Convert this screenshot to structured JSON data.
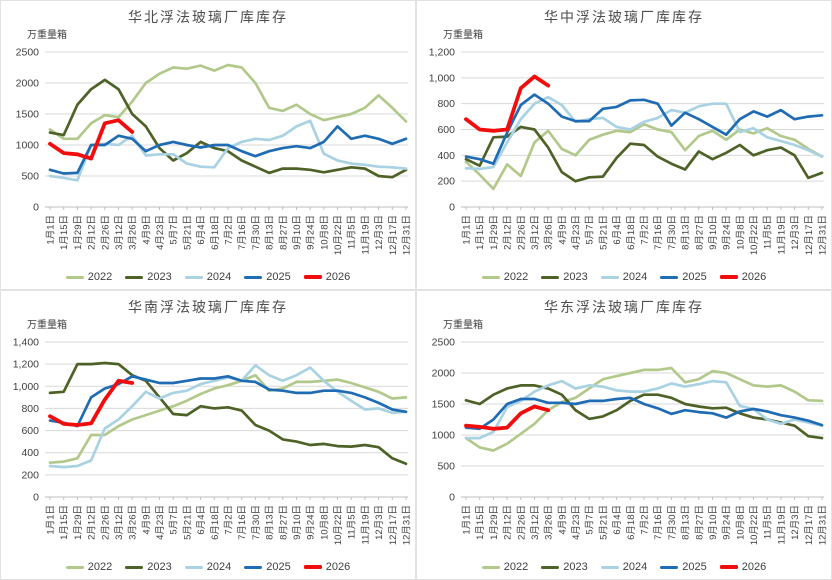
{
  "page_background": "#ffffff",
  "colors": {
    "grid": "#d9d9d9",
    "axis": "#bfbfbf",
    "tick_text": "#404040",
    "title_text": "#4d4d4d"
  },
  "categories": [
    "1月1日",
    "1月15日",
    "1月29日",
    "2月12日",
    "2月26日",
    "3月12日",
    "3月26日",
    "4月9日",
    "4月23日",
    "5月7日",
    "5月21日",
    "6月4日",
    "6月18日",
    "7月2日",
    "7月16日",
    "7月30日",
    "8月13日",
    "8月27日",
    "9月10日",
    "9月24日",
    "10月8日",
    "10月22日",
    "11月5日",
    "11月19日",
    "12月3日",
    "12月17日",
    "12月31日"
  ],
  "chart_data": [
    {
      "type": "line",
      "title": "华北浮法玻璃厂库库存",
      "unit": "万重量箱",
      "ylim": [
        0,
        2500
      ],
      "y_ticks": [
        "0",
        "500",
        "1000",
        "1500",
        "2000",
        "2500"
      ],
      "legend_position": "bottom",
      "grid": true,
      "series": [
        {
          "name": "2022",
          "color": "#b3c98b",
          "values": [
            1250,
            1100,
            1100,
            1350,
            1480,
            1450,
            1700,
            2000,
            2150,
            2250,
            2230,
            2280,
            2200,
            2290,
            2250,
            2000,
            1600,
            1550,
            1650,
            1500,
            1400,
            1450,
            1500,
            1600,
            1800,
            1600,
            1380
          ]
        },
        {
          "name": "2023",
          "color": "#4e6227",
          "values": [
            1200,
            1160,
            1650,
            1900,
            2050,
            1900,
            1500,
            1300,
            950,
            750,
            870,
            1050,
            950,
            900,
            750,
            650,
            550,
            620,
            620,
            600,
            560,
            600,
            640,
            620,
            500,
            480,
            600
          ]
        },
        {
          "name": "2024",
          "color": "#a9d2e2",
          "values": [
            500,
            470,
            430,
            1000,
            1020,
            1000,
            1150,
            830,
            850,
            850,
            700,
            650,
            640,
            950,
            1050,
            1100,
            1080,
            1150,
            1300,
            1390,
            860,
            750,
            700,
            680,
            650,
            640,
            620
          ]
        },
        {
          "name": "2025",
          "color": "#1f6cb4",
          "values": [
            600,
            540,
            550,
            1000,
            1000,
            1150,
            1100,
            900,
            1000,
            1050,
            1000,
            960,
            1000,
            1000,
            900,
            820,
            900,
            950,
            980,
            950,
            1050,
            1300,
            1100,
            1150,
            1100,
            1020,
            1100
          ]
        },
        {
          "name": "2026",
          "color": "#f20d0d",
          "values": [
            1020,
            870,
            850,
            780,
            1350,
            1400,
            1210
          ]
        }
      ]
    },
    {
      "type": "line",
      "title": "华中浮法玻璃厂库库存",
      "unit": "万重量箱",
      "ylim": [
        0,
        1200
      ],
      "y_ticks": [
        "0",
        "200",
        "400",
        "600",
        "800",
        "1,000",
        "1,200"
      ],
      "legend_position": "bottom",
      "grid": true,
      "series": [
        {
          "name": "2022",
          "color": "#b3c98b",
          "values": [
            350,
            250,
            140,
            330,
            240,
            500,
            590,
            450,
            400,
            520,
            560,
            590,
            580,
            640,
            600,
            580,
            440,
            550,
            590,
            520,
            600,
            570,
            610,
            550,
            520,
            450,
            390
          ]
        },
        {
          "name": "2023",
          "color": "#4e6227",
          "values": [
            370,
            320,
            540,
            545,
            620,
            600,
            460,
            270,
            200,
            230,
            235,
            380,
            490,
            480,
            390,
            335,
            290,
            430,
            370,
            420,
            480,
            400,
            440,
            460,
            400,
            225,
            265
          ]
        },
        {
          "name": "2024",
          "color": "#a9d2e2",
          "values": [
            300,
            295,
            310,
            500,
            680,
            800,
            850,
            790,
            660,
            680,
            690,
            620,
            600,
            660,
            690,
            750,
            730,
            780,
            800,
            800,
            580,
            610,
            540,
            510,
            480,
            440,
            390
          ]
        },
        {
          "name": "2025",
          "color": "#1f6cb4",
          "values": [
            390,
            370,
            335,
            575,
            790,
            870,
            800,
            700,
            665,
            665,
            760,
            775,
            825,
            830,
            800,
            630,
            730,
            680,
            620,
            560,
            680,
            740,
            700,
            750,
            680,
            700,
            710
          ]
        },
        {
          "name": "2026",
          "color": "#f20d0d",
          "values": [
            680,
            600,
            590,
            600,
            920,
            1010,
            940
          ]
        }
      ]
    },
    {
      "type": "line",
      "title": "华南浮法玻璃厂库库存",
      "unit": "万重量箱",
      "ylim": [
        0,
        1400
      ],
      "y_ticks": [
        "0",
        "200",
        "400",
        "600",
        "800",
        "1,000",
        "1,200",
        "1,400"
      ],
      "legend_position": "bottom",
      "grid": true,
      "series": [
        {
          "name": "2022",
          "color": "#b3c98b",
          "values": [
            310,
            320,
            350,
            560,
            560,
            640,
            700,
            740,
            780,
            820,
            870,
            930,
            980,
            1010,
            1050,
            1100,
            960,
            980,
            1040,
            1040,
            1050,
            1060,
            1030,
            990,
            950,
            890,
            900
          ]
        },
        {
          "name": "2023",
          "color": "#4e6227",
          "values": [
            940,
            950,
            1200,
            1200,
            1210,
            1200,
            1100,
            1050,
            900,
            750,
            740,
            820,
            800,
            810,
            780,
            650,
            600,
            520,
            500,
            470,
            480,
            460,
            455,
            470,
            450,
            350,
            300
          ]
        },
        {
          "name": "2024",
          "color": "#a9d2e2",
          "values": [
            280,
            270,
            280,
            330,
            620,
            700,
            820,
            950,
            890,
            940,
            960,
            1020,
            1050,
            1080,
            1050,
            1190,
            1100,
            1050,
            1100,
            1170,
            1050,
            950,
            870,
            790,
            800,
            760,
            770
          ]
        },
        {
          "name": "2025",
          "color": "#1f6cb4",
          "values": [
            690,
            670,
            640,
            900,
            980,
            1020,
            1090,
            1060,
            1030,
            1030,
            1050,
            1070,
            1070,
            1090,
            1050,
            1040,
            970,
            960,
            940,
            940,
            960,
            960,
            940,
            900,
            850,
            790,
            770
          ]
        },
        {
          "name": "2026",
          "color": "#f20d0d",
          "values": [
            730,
            660,
            650,
            665,
            880,
            1050,
            1030
          ]
        }
      ]
    },
    {
      "type": "line",
      "title": "华东浮法玻璃厂库库存",
      "unit": "万重量箱",
      "ylim": [
        0,
        2500
      ],
      "y_ticks": [
        "0",
        "500",
        "1000",
        "1500",
        "2000",
        "2500"
      ],
      "legend_position": "bottom",
      "grid": true,
      "series": [
        {
          "name": "2022",
          "color": "#b3c98b",
          "values": [
            950,
            800,
            750,
            860,
            1020,
            1180,
            1400,
            1530,
            1600,
            1750,
            1900,
            1950,
            2000,
            2050,
            2050,
            2080,
            1850,
            1900,
            2030,
            2000,
            1900,
            1800,
            1780,
            1800,
            1700,
            1560,
            1550
          ]
        },
        {
          "name": "2023",
          "color": "#4e6227",
          "values": [
            1560,
            1500,
            1650,
            1750,
            1800,
            1800,
            1750,
            1650,
            1400,
            1260,
            1300,
            1400,
            1550,
            1650,
            1650,
            1600,
            1500,
            1460,
            1430,
            1440,
            1350,
            1280,
            1250,
            1200,
            1150,
            980,
            950
          ]
        },
        {
          "name": "2024",
          "color": "#a9d2e2",
          "values": [
            950,
            950,
            1050,
            1450,
            1550,
            1700,
            1800,
            1870,
            1750,
            1800,
            1780,
            1720,
            1700,
            1700,
            1750,
            1830,
            1780,
            1820,
            1870,
            1850,
            1470,
            1420,
            1250,
            1180,
            1250,
            1200,
            1150
          ]
        },
        {
          "name": "2025",
          "color": "#1f6cb4",
          "values": [
            1120,
            1100,
            1250,
            1500,
            1580,
            1580,
            1520,
            1520,
            1500,
            1550,
            1550,
            1580,
            1600,
            1500,
            1430,
            1340,
            1400,
            1370,
            1350,
            1280,
            1380,
            1420,
            1380,
            1320,
            1280,
            1230,
            1160
          ]
        },
        {
          "name": "2026",
          "color": "#f20d0d",
          "values": [
            1150,
            1130,
            1100,
            1120,
            1350,
            1460,
            1400
          ]
        }
      ]
    }
  ]
}
